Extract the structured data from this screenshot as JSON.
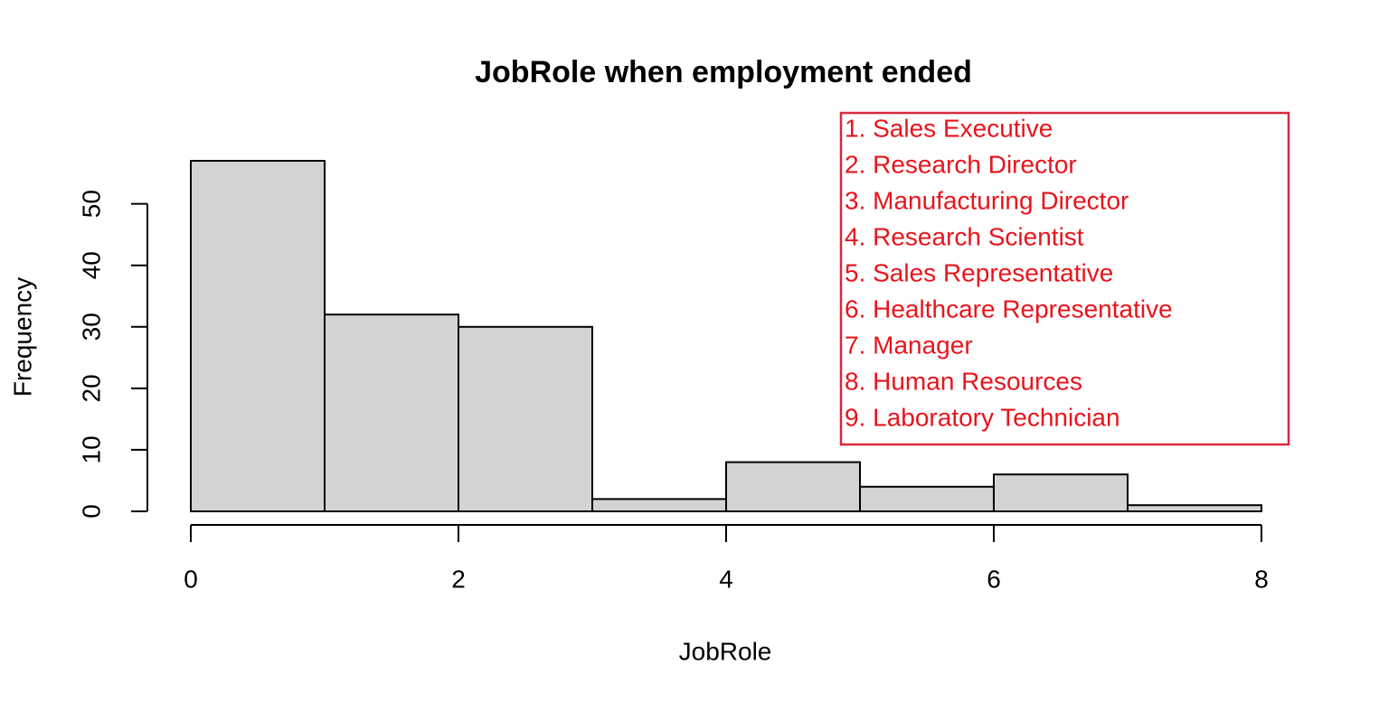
{
  "chart_data": {
    "type": "histogram",
    "title": "JobRole when employment ended",
    "x_label": "JobRole",
    "y_label": "Frequency",
    "bins": [
      0,
      1,
      2,
      3,
      4,
      5,
      6,
      7,
      8
    ],
    "values": [
      57,
      32,
      30,
      2,
      8,
      4,
      6,
      1
    ],
    "color": "#d3d3d3",
    "xlim": [
      0,
      8
    ],
    "xticks": [
      0,
      2,
      4,
      6,
      8
    ],
    "ylim": [
      0,
      57
    ],
    "yticks": [
      0,
      10,
      20,
      30,
      40,
      50
    ],
    "annotations": [
      "1. Sales Executive",
      "2. Research Director",
      "3. Manufacturing Director",
      "4. Research Scientist",
      "5. Sales Representative",
      "6. Healthcare Representative",
      "7. Manager",
      "8. Human Resources",
      "9. Laboratory Technician"
    ],
    "annotation_color": "#e8141c",
    "annotation_border": "#d8283c"
  }
}
